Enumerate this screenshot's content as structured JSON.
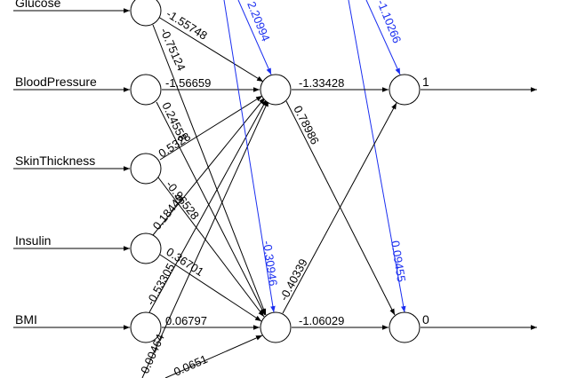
{
  "diagram": {
    "inputs": [
      {
        "id": "in-glucose",
        "label": "Glucose"
      },
      {
        "id": "in-bp",
        "label": "BloodPressure"
      },
      {
        "id": "in-skin",
        "label": "SkinThickness"
      },
      {
        "id": "in-insulin",
        "label": "Insulin"
      },
      {
        "id": "in-bmi",
        "label": "BMI"
      }
    ],
    "outputs": [
      {
        "id": "out-1",
        "label": "1"
      },
      {
        "id": "out-0",
        "label": "0"
      }
    ],
    "weights": [
      {
        "name": "w-glucose-h1",
        "value": "-1.55748",
        "color": "black"
      },
      {
        "name": "w-glucose-h2",
        "value": "-0.75124",
        "color": "black"
      },
      {
        "name": "w-bp-h1",
        "value": "-1.56659",
        "color": "black"
      },
      {
        "name": "w-bp-h2",
        "value": "0.24558",
        "color": "black"
      },
      {
        "name": "w-skin-h1",
        "value": "0.5328",
        "color": "black"
      },
      {
        "name": "w-skin-h2",
        "value": "-0.96528",
        "color": "black"
      },
      {
        "name": "w-insulin-h1",
        "value": "0.18449",
        "color": "black"
      },
      {
        "name": "w-insulin-h2",
        "value": "0.36701",
        "color": "black"
      },
      {
        "name": "w-bmi-h1",
        "value": "-0.53305",
        "color": "black"
      },
      {
        "name": "w-bmi-h2",
        "value": "0.06797",
        "color": "black"
      },
      {
        "name": "w-bottom-h1",
        "value": "0.00464",
        "color": "black"
      },
      {
        "name": "w-bottom-h2",
        "value": "0.0651",
        "color": "black"
      },
      {
        "name": "w-h1-out1",
        "value": "-1.33428",
        "color": "black"
      },
      {
        "name": "w-h1-out0",
        "value": "0.78986",
        "color": "black"
      },
      {
        "name": "w-h2-out1",
        "value": "-0.40339",
        "color": "black"
      },
      {
        "name": "w-h2-out0",
        "value": "-1.06029",
        "color": "black"
      },
      {
        "name": "w-bias-h1",
        "value": "2.20994",
        "color": "blue"
      },
      {
        "name": "w-bias-h2",
        "value": "-0.30946",
        "color": "blue"
      },
      {
        "name": "w-bias-out1",
        "value": "-1.10266",
        "color": "blue"
      },
      {
        "name": "w-bias-out0",
        "value": "0.09455",
        "color": "blue"
      }
    ]
  }
}
